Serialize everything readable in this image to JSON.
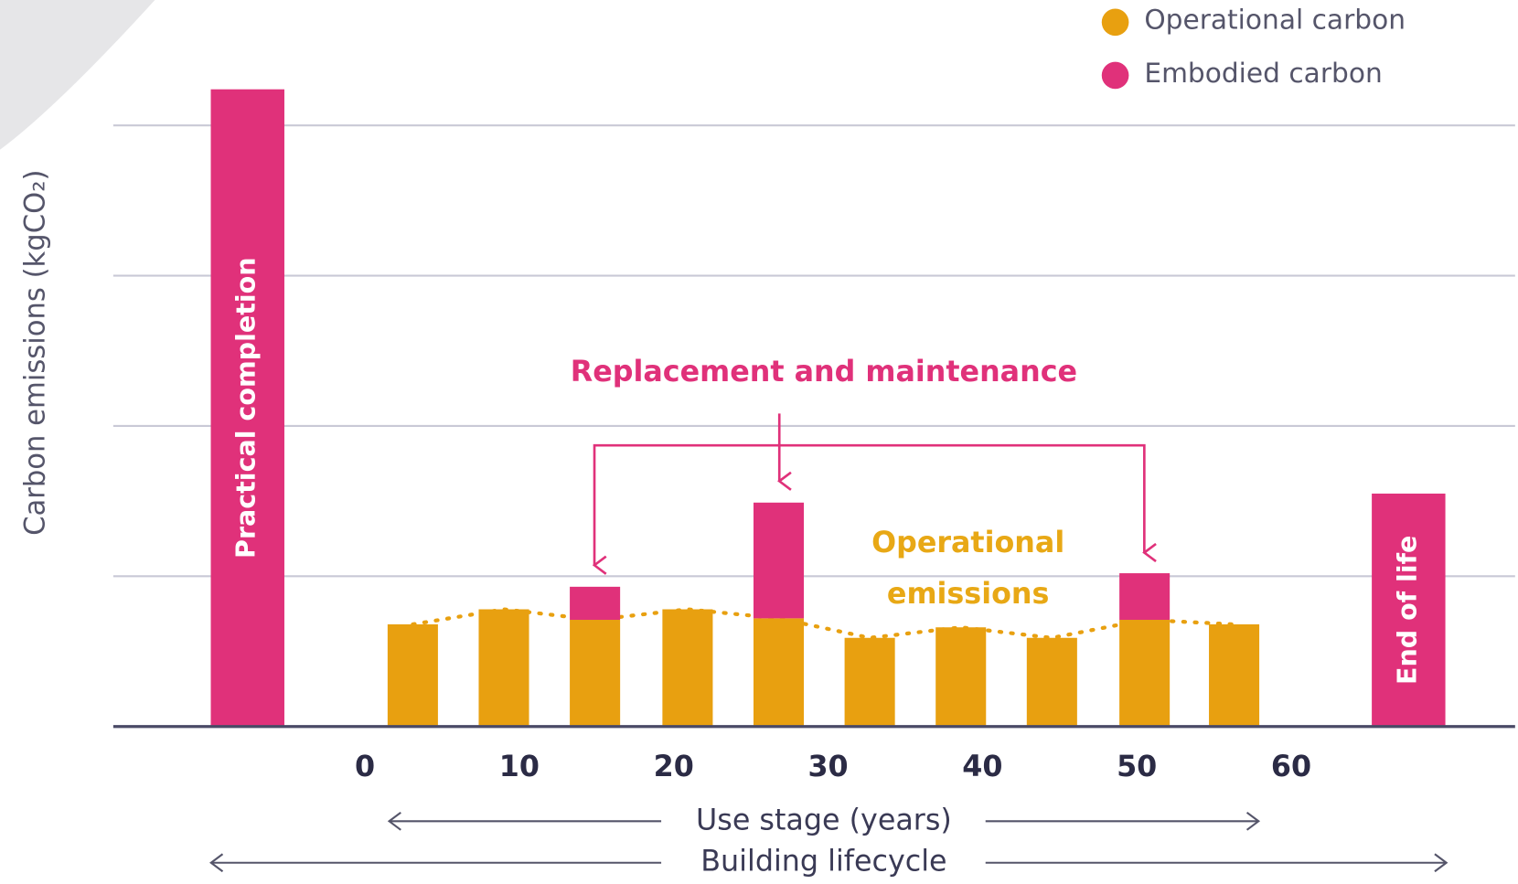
{
  "chart_data": {
    "type": "bar",
    "ylabel": "Carbon emissions (kgCO₂)",
    "xticks": [
      0,
      10,
      20,
      30,
      40,
      50,
      60
    ],
    "xlim": [
      -16.3,
      74.5
    ],
    "ylim": [
      0,
      4.5
    ],
    "gridlines": [
      1,
      2,
      3,
      4
    ],
    "x": [
      3.1,
      9,
      14.9,
      20.9,
      26.8,
      32.7,
      38.6,
      44.5,
      50.5,
      56.3
    ],
    "series": [
      {
        "name": "Operational carbon",
        "color": "#e8a010",
        "values": [
          0.68,
          0.78,
          0.71,
          0.78,
          0.72,
          0.59,
          0.66,
          0.59,
          0.71,
          0.68
        ]
      },
      {
        "name": "Embodied carbon",
        "color": "#e0317a",
        "values": [
          null,
          null,
          0.22,
          null,
          0.77,
          null,
          null,
          null,
          0.31,
          null
        ]
      }
    ],
    "stage_bars": [
      {
        "label": "Practical completion",
        "x": -7.6,
        "value": 4.24
      },
      {
        "label": "End of life",
        "x": 67.6,
        "value": 1.55
      }
    ],
    "annotations": {
      "replacement": "Replacement and maintenance",
      "operational": [
        "Operational",
        "emissions"
      ],
      "use_stage": "Use stage (years)",
      "lifecycle": "Building lifecycle"
    }
  }
}
